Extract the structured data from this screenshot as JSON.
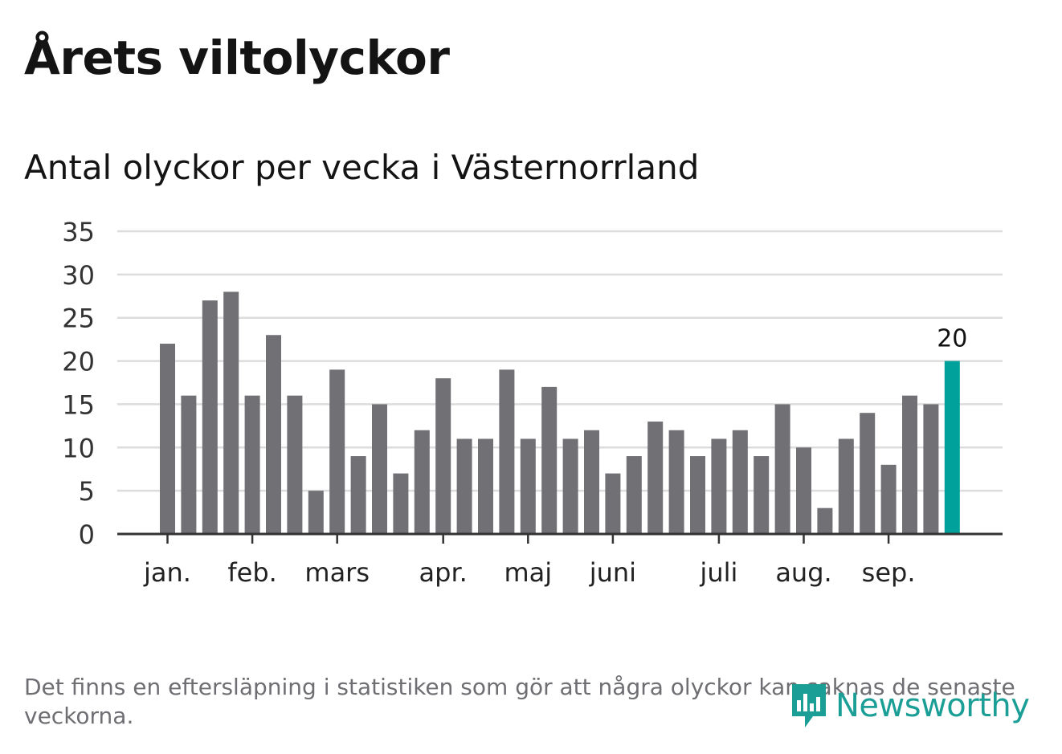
{
  "title": "Årets viltolyckor",
  "subtitle": "Antal olyckor per vecka i Västernorrland",
  "footnote": "Det finns en eftersläpning i statistiken som gör att några olyckor kan saknas de senaste veckorna.",
  "logo": {
    "name": "Newsworthy",
    "icon": "newsworthy-bar-chart-icon"
  },
  "colors": {
    "bar": "#707075",
    "highlight": "#00a19a",
    "grid": "#dcdcdc",
    "axis": "#333333",
    "text": "#222222"
  },
  "chart_data": {
    "type": "bar",
    "ylim": [
      0,
      35
    ],
    "yticks": [
      0,
      5,
      10,
      15,
      20,
      25,
      30,
      35
    ],
    "values": [
      22,
      16,
      27,
      28,
      16,
      23,
      16,
      5,
      19,
      9,
      15,
      7,
      12,
      18,
      11,
      11,
      19,
      11,
      17,
      11,
      12,
      7,
      9,
      13,
      12,
      9,
      11,
      12,
      9,
      15,
      10,
      3,
      11,
      14,
      8,
      16,
      15,
      20
    ],
    "month_labels": [
      {
        "label": "jan.",
        "week": 1
      },
      {
        "label": "feb.",
        "week": 5
      },
      {
        "label": "mars",
        "week": 9
      },
      {
        "label": "apr.",
        "week": 14
      },
      {
        "label": "maj",
        "week": 18
      },
      {
        "label": "juni",
        "week": 22
      },
      {
        "label": "juli",
        "week": 27
      },
      {
        "label": "aug.",
        "week": 31
      },
      {
        "label": "sep.",
        "week": 35
      }
    ],
    "highlight_index": 37,
    "highlight_label": "20",
    "xlabel": "",
    "ylabel": ""
  }
}
